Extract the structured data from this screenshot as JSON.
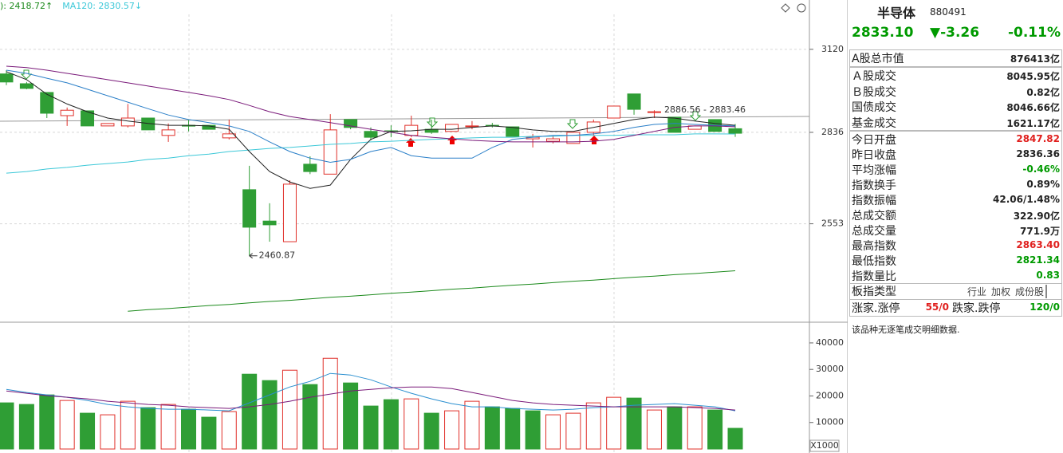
{
  "chart_data": [
    {
      "type": "candlestick",
      "up_color": "#e0302a",
      "down_color": "#2f9e35",
      "log_scale": true,
      "grid": true,
      "ylim": [
        2282,
        3302
      ],
      "yticks": [
        2553,
        2836,
        3120
      ],
      "annotations": [
        "2886.56 - 2883.46"
      ],
      "candles": [
        {
          "open": 3033,
          "high": 3046,
          "low": 2994,
          "close": 3005
        },
        {
          "open": 2999,
          "high": 3005,
          "low": 2980,
          "close": 2983
        },
        {
          "open": 2969,
          "high": 2969,
          "low": 2883,
          "close": 2899
        },
        {
          "open": 2891,
          "high": 2918,
          "low": 2857,
          "close": 2909
        },
        {
          "open": 2907,
          "high": 2907,
          "low": 2857,
          "close": 2857
        },
        {
          "open": 2857,
          "high": 2865,
          "low": 2857,
          "close": 2865
        },
        {
          "open": 2857,
          "high": 2930,
          "low": 2852,
          "close": 2883
        },
        {
          "open": 2883,
          "high": 2883,
          "low": 2844,
          "close": 2844
        },
        {
          "open": 2826,
          "high": 2865,
          "low": 2805,
          "close": 2844
        },
        {
          "open": 2859,
          "high": 2878,
          "low": 2839,
          "close": 2857
        },
        {
          "open": 2859,
          "high": 2859,
          "low": 2846,
          "close": 2846
        },
        {
          "open": 2818,
          "high": 2878,
          "low": 2813,
          "close": 2831
        },
        {
          "open": 2655,
          "high": 2729,
          "low": 2460.87,
          "close": 2543
        },
        {
          "open": 2561,
          "high": 2614,
          "low": 2501,
          "close": 2550
        },
        {
          "open": 2501,
          "high": 2684,
          "low": 2501,
          "close": 2672
        },
        {
          "open": 2734,
          "high": 2759,
          "low": 2703,
          "close": 2711
        },
        {
          "open": 2703,
          "high": 2896,
          "low": 2703,
          "close": 2844
        },
        {
          "open": 2878,
          "high": 2878,
          "low": 2846,
          "close": 2852
        },
        {
          "open": 2839,
          "high": 2852,
          "low": 2810,
          "close": 2820
        },
        {
          "open": 2841,
          "high": 2859,
          "low": 2820,
          "close": 2839
        },
        {
          "open": 2826,
          "high": 2891,
          "low": 2820,
          "close": 2859
        },
        {
          "open": 2846,
          "high": 2878,
          "low": 2831,
          "close": 2836
        },
        {
          "open": 2839,
          "high": 2862,
          "low": 2839,
          "close": 2862
        },
        {
          "open": 2857,
          "high": 2873,
          "low": 2846,
          "close": 2857
        },
        {
          "open": 2859,
          "high": 2867,
          "low": 2852,
          "close": 2857
        },
        {
          "open": 2854,
          "high": 2854,
          "low": 2823,
          "close": 2823
        },
        {
          "open": 2815,
          "high": 2831,
          "low": 2787,
          "close": 2820
        },
        {
          "open": 2807,
          "high": 2826,
          "low": 2800,
          "close": 2815
        },
        {
          "open": 2800,
          "high": 2836,
          "low": 2800,
          "close": 2836
        },
        {
          "open": 2836,
          "high": 2878,
          "low": 2826,
          "close": 2870
        },
        {
          "open": 2883,
          "high": 2923,
          "low": 2883,
          "close": 2923
        },
        {
          "open": 2964,
          "high": 2964,
          "low": 2894,
          "close": 2912
        },
        {
          "open": 2904,
          "high": 2909,
          "low": 2883,
          "close": 2904
        },
        {
          "open": 2886,
          "high": 2886,
          "low": 2836,
          "close": 2836
        },
        {
          "open": 2846,
          "high": 2857,
          "low": 2846,
          "close": 2857
        },
        {
          "open": 2878,
          "high": 2878,
          "low": 2839,
          "close": 2839
        },
        {
          "open": 2847.82,
          "high": 2863.4,
          "low": 2821.34,
          "close": 2833.1
        }
      ],
      "series": [
        {
          "name": "): 2418.72↑",
          "color": "#1c8a1c",
          "values": [
            null,
            null,
            null,
            null,
            null,
            null,
            2309,
            2313,
            2316,
            2320,
            2324,
            2327,
            2331,
            2335,
            2338,
            2342,
            2346,
            2349,
            2353,
            2357,
            2360,
            2364,
            2368,
            2371,
            2375,
            2379,
            2382,
            2386,
            2390,
            2393,
            2397,
            2401,
            2404,
            2408,
            2411,
            2415,
            2418.72
          ]
        },
        {
          "name": "MA120: 2830.57↓",
          "color": "#3cc8d8",
          "values": [
            2706,
            2711,
            2719,
            2724,
            2731,
            2736,
            2741,
            2749,
            2753,
            2761,
            2766,
            2774,
            2779,
            2784,
            2787,
            2792,
            2797,
            2800,
            2805,
            2807,
            2810,
            2813,
            2815,
            2818,
            2820,
            2820,
            2823,
            2823,
            2826,
            2826,
            2826,
            2828,
            2828,
            2828,
            2831,
            2831,
            2830.57
          ]
        },
        {
          "color": "#222222",
          "values": [
            3041,
            3013,
            2963,
            2930,
            2904,
            2883,
            2873,
            2865,
            2859,
            2859,
            2857,
            2846,
            2774,
            2711,
            2679,
            2659,
            2669,
            2749,
            2813,
            2839,
            2841,
            2846,
            2846,
            2852,
            2857,
            2852,
            2844,
            2839,
            2839,
            2852,
            2865,
            2878,
            2886,
            2883,
            2873,
            2865,
            2859
          ]
        },
        {
          "color": "#2a7fc8",
          "values": [
            3046,
            3035,
            3018,
            3002,
            2980,
            2958,
            2936,
            2914,
            2893,
            2878,
            2868,
            2857,
            2839,
            2805,
            2774,
            2753,
            2740,
            2749,
            2774,
            2787,
            2761,
            2753,
            2753,
            2753,
            2787,
            2813,
            2820,
            2826,
            2826,
            2831,
            2839,
            2852,
            2862,
            2865,
            2862,
            2859,
            2857
          ]
        },
        {
          "color": "#7a1a7a",
          "values": [
            3060,
            3055,
            3046,
            3035,
            3024,
            3013,
            3002,
            2991,
            2980,
            2969,
            2958,
            2945,
            2925,
            2904,
            2888,
            2878,
            2868,
            2857,
            2846,
            2836,
            2826,
            2820,
            2815,
            2810,
            2807,
            2805,
            2805,
            2805,
            2805,
            2807,
            2813,
            2826,
            2839,
            2852,
            2857,
            2857,
            2854
          ]
        }
      ]
    },
    {
      "type": "bar",
      "up_color": "#e0302a",
      "down_color": "#2f9e35",
      "grid": false,
      "ylim": [
        0,
        47500
      ],
      "yticks": [
        10000,
        20000,
        30000,
        40000
      ],
      "y_axis_label": "X1000",
      "values": [
        17400,
        16800,
        20400,
        18300,
        13500,
        12900,
        18000,
        15600,
        16800,
        15000,
        12000,
        14100,
        28200,
        25800,
        29700,
        24300,
        34200,
        24900,
        16200,
        18600,
        18900,
        13500,
        14400,
        18000,
        15900,
        15300,
        14400,
        12900,
        13500,
        17400,
        19500,
        19200,
        14700,
        15900,
        15900,
        14700,
        7800
      ],
      "bar_colors": [
        "#2f9e35",
        "#2f9e35",
        "#2f9e35",
        "#e0302a",
        "#2f9e35",
        "#e0302a",
        "#e0302a",
        "#2f9e35",
        "#e0302a",
        "#2f9e35",
        "#2f9e35",
        "#e0302a",
        "#2f9e35",
        "#2f9e35",
        "#e0302a",
        "#2f9e35",
        "#e0302a",
        "#2f9e35",
        "#2f9e35",
        "#2f9e35",
        "#e0302a",
        "#2f9e35",
        "#e0302a",
        "#e0302a",
        "#2f9e35",
        "#2f9e35",
        "#2f9e35",
        "#e0302a",
        "#e0302a",
        "#e0302a",
        "#e0302a",
        "#2f9e35",
        "#e0302a",
        "#2f9e35",
        "#e0302a",
        "#2f9e35",
        "#2f9e35"
      ],
      "series": [
        {
          "color": "#2a8fd0",
          "values": [
            22500,
            21300,
            20400,
            19500,
            18300,
            16800,
            15900,
            15300,
            15000,
            15000,
            14700,
            14400,
            17400,
            20400,
            23400,
            25500,
            28500,
            27900,
            26100,
            23400,
            21000,
            18900,
            17100,
            15900,
            15900,
            15300,
            15000,
            14700,
            15000,
            15600,
            15900,
            16500,
            16800,
            17100,
            16500,
            15900,
            14400
          ]
        },
        {
          "color": "#7a1a7a",
          "values": [
            21900,
            21000,
            20100,
            19500,
            18900,
            18000,
            17400,
            16800,
            16500,
            15900,
            15600,
            15300,
            15900,
            16800,
            18000,
            19500,
            20700,
            21900,
            22500,
            23100,
            23400,
            23400,
            22800,
            21300,
            19800,
            18300,
            17400,
            16800,
            16500,
            16200,
            15900,
            15900,
            15900,
            15900,
            15600,
            15300,
            14700
          ]
        }
      ]
    }
  ],
  "panel": {
    "name": "半导体",
    "code": "880491",
    "price": "2833.10",
    "change": "▼-3.26",
    "change_pct": "-0.11%",
    "price_color": "#009a00",
    "groups": [
      [
        {
          "label": "A股总市值",
          "value": "876413亿"
        }
      ],
      [
        {
          "label": "Ａ股成交",
          "value": "8045.95亿"
        },
        {
          "label": "Ｂ股成交",
          "value": "0.82亿"
        },
        {
          "label": "国债成交",
          "value": "8046.66亿"
        },
        {
          "label": "基金成交",
          "value": "1621.17亿"
        }
      ],
      [
        {
          "label": "今日开盘",
          "value": "2847.82",
          "color": "#e0201e"
        },
        {
          "label": "昨日收盘",
          "value": "2836.36"
        },
        {
          "label": "平均涨幅",
          "value": "-0.46%",
          "color": "#009a00"
        },
        {
          "label": "指数换手",
          "value": "0.89%"
        },
        {
          "label": "指数振幅",
          "value": "42.06/1.48%"
        },
        {
          "label": "总成交额",
          "value": "322.90亿"
        },
        {
          "label": "总成交量",
          "value": "771.9万"
        },
        {
          "label": "最高指数",
          "value": "2863.40",
          "color": "#e0201e"
        },
        {
          "label": "最低指数",
          "value": "2821.34",
          "color": "#009a00"
        },
        {
          "label": "指数量比",
          "value": "0.83",
          "color": "#009a00"
        }
      ]
    ],
    "index_type": {
      "label": "板指类型",
      "options": [
        "行业",
        "加权",
        "成份股"
      ]
    },
    "breadth": [
      {
        "label": "涨家.涨停",
        "value": "55/0",
        "color": "#e0201e"
      },
      {
        "label": "跌家.跌停",
        "value": "120/0",
        "color": "#009a00"
      }
    ],
    "note": "该品种无逐笔成交明细数据."
  }
}
